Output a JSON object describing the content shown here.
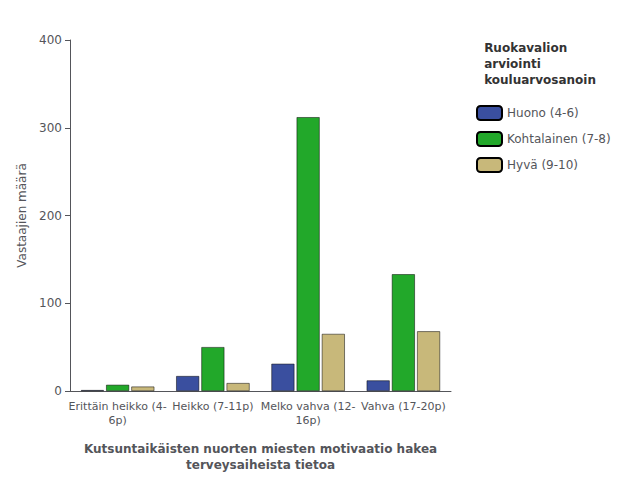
{
  "chart_data": {
    "type": "bar",
    "categories": [
      "Erittäin heikko (4-\n6p)",
      "Heikko (7-11p)",
      "Melko vahva (12-\n16p)",
      "Vahva (17-20p)"
    ],
    "series": [
      {
        "name": "Huono (4-6)",
        "color": "#3a4f9f",
        "values": [
          1,
          17,
          31,
          12
        ]
      },
      {
        "name": "Kohtalainen (7-8)",
        "color": "#22a82a",
        "values": [
          7,
          50,
          312,
          133
        ]
      },
      {
        "name": "Hyvä (9-10)",
        "color": "#c8b87a",
        "values": [
          5,
          9,
          65,
          68
        ]
      }
    ],
    "xlabel": "Kutsuntaikäisten nuorten miesten motivaatio hakea\nterveysaiheista tietoa",
    "ylabel": "Vastaajien määrä",
    "legend_title": "Ruokavalion\narviointi\nkouluarvosanoin",
    "legend": "right",
    "ylim": [
      0,
      400
    ],
    "yticks": [
      0,
      100,
      200,
      300,
      400
    ],
    "grid": false
  }
}
